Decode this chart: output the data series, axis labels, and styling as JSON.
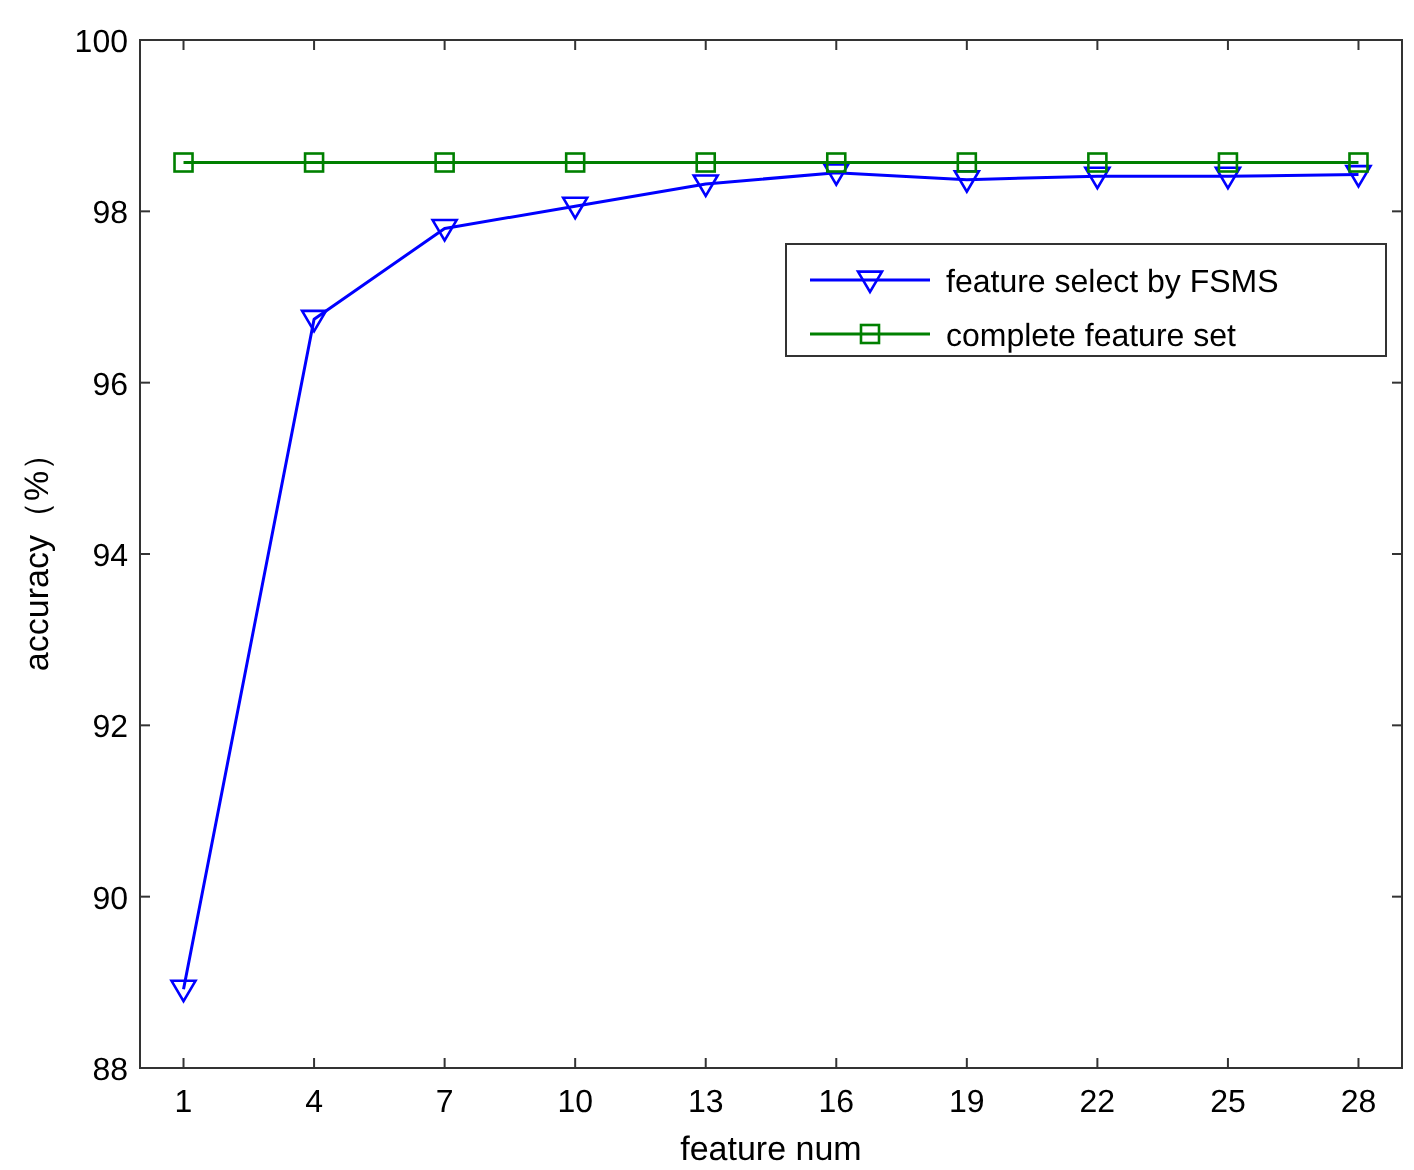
{
  "chart_data": {
    "type": "line",
    "xlabel": "feature num",
    "ylabel": "accuracy（%）",
    "x": [
      1,
      4,
      7,
      10,
      13,
      16,
      19,
      22,
      25,
      28
    ],
    "xlim": [
      0,
      29
    ],
    "xticks": [
      1,
      4,
      7,
      10,
      13,
      16,
      19,
      22,
      25,
      28
    ],
    "ylim": [
      88,
      100
    ],
    "yticks": [
      88,
      90,
      92,
      94,
      96,
      98,
      100
    ],
    "grid": false,
    "legend": "top right",
    "series": [
      {
        "name": "feature select by FSMS",
        "color": "#0000ff",
        "marker": "triangle",
        "values": [
          88.92,
          96.74,
          97.8,
          98.06,
          98.32,
          98.45,
          98.37,
          98.41,
          98.41,
          98.43
        ]
      },
      {
        "name": "complete feature set",
        "color": "#008000",
        "marker": "square",
        "values": [
          98.57,
          98.57,
          98.57,
          98.57,
          98.57,
          98.57,
          98.57,
          98.57,
          98.57,
          98.57
        ]
      }
    ]
  }
}
